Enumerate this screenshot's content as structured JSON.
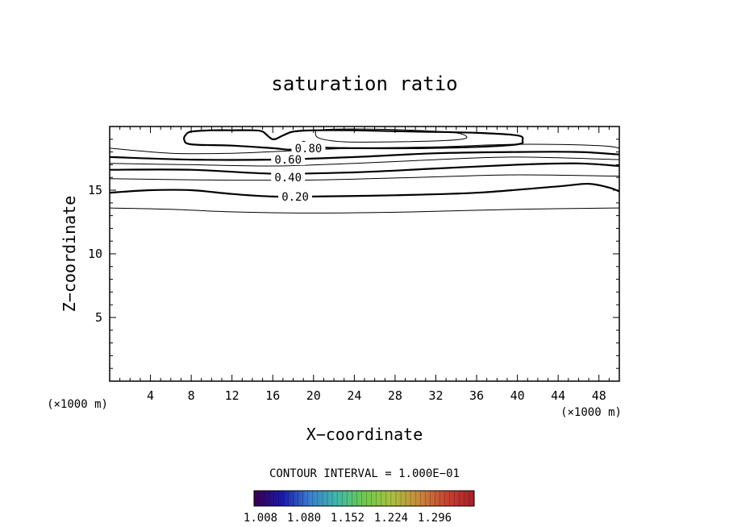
{
  "chart_data": {
    "type": "contour",
    "title": "saturation ratio",
    "xlabel": "X−coordinate",
    "ylabel": "Z−coordinate",
    "x_unit": "(×1000 m)",
    "y_unit": "(×1000 m)",
    "xlim": [
      0,
      50
    ],
    "ylim": [
      0,
      20
    ],
    "x_ticks": [
      4,
      8,
      12,
      16,
      20,
      24,
      28,
      32,
      36,
      40,
      44,
      48
    ],
    "y_ticks": [
      5,
      10,
      15
    ],
    "contour_interval_text": "CONTOUR INTERVAL = 1.000E−01",
    "contours": [
      {
        "level": 0.1,
        "labeled": false,
        "points": [
          [
            0,
            13.6
          ],
          [
            6,
            13.5
          ],
          [
            12,
            13.3
          ],
          [
            20,
            13.2
          ],
          [
            30,
            13.3
          ],
          [
            40,
            13.5
          ],
          [
            50,
            13.6
          ]
        ]
      },
      {
        "level": 0.2,
        "label": "0.20",
        "labeled": true,
        "label_at": [
          18.2,
          14.5
        ],
        "points": [
          [
            0,
            14.8
          ],
          [
            4,
            15.0
          ],
          [
            8,
            15.0
          ],
          [
            12,
            14.7
          ],
          [
            16,
            14.5
          ],
          [
            20,
            14.5
          ],
          [
            28,
            14.6
          ],
          [
            36,
            14.8
          ],
          [
            44,
            15.3
          ],
          [
            47,
            15.5
          ],
          [
            49,
            15.2
          ],
          [
            50,
            14.9
          ]
        ]
      },
      {
        "level": 0.3,
        "labeled": false,
        "points": [
          [
            0,
            15.9
          ],
          [
            10,
            15.8
          ],
          [
            20,
            15.8
          ],
          [
            30,
            16.0
          ],
          [
            40,
            16.2
          ],
          [
            50,
            16.1
          ]
        ]
      },
      {
        "level": 0.4,
        "label": "0.40",
        "labeled": true,
        "label_at": [
          17.5,
          16.0
        ],
        "points": [
          [
            0,
            16.6
          ],
          [
            8,
            16.6
          ],
          [
            16,
            16.3
          ],
          [
            24,
            16.4
          ],
          [
            32,
            16.7
          ],
          [
            40,
            17.0
          ],
          [
            46,
            17.1
          ],
          [
            50,
            16.9
          ]
        ]
      },
      {
        "level": 0.5,
        "labeled": false,
        "points": [
          [
            0,
            17.1
          ],
          [
            8,
            17.0
          ],
          [
            16,
            16.9
          ],
          [
            24,
            17.1
          ],
          [
            32,
            17.4
          ],
          [
            40,
            17.6
          ],
          [
            50,
            17.4
          ]
        ]
      },
      {
        "level": 0.6,
        "label": "0.60",
        "labeled": true,
        "label_at": [
          17.5,
          17.4
        ],
        "points": [
          [
            0,
            17.6
          ],
          [
            8,
            17.4
          ],
          [
            16,
            17.4
          ],
          [
            24,
            17.6
          ],
          [
            32,
            17.9
          ],
          [
            40,
            18.0
          ],
          [
            46,
            18.0
          ],
          [
            50,
            17.8
          ]
        ]
      },
      {
        "level": 0.7,
        "labeled": false,
        "points": [
          [
            0,
            18.3
          ],
          [
            6,
            17.9
          ],
          [
            12,
            17.9
          ],
          [
            18,
            18.1
          ],
          [
            24,
            18.3
          ],
          [
            32,
            18.4
          ],
          [
            40,
            18.6
          ],
          [
            48,
            18.5
          ],
          [
            50,
            18.3
          ]
        ]
      },
      {
        "level": 0.8,
        "label": "0.80",
        "labeled": true,
        "label_at": [
          19.5,
          18.3
        ],
        "points": [
          [
            7.5,
            19.4
          ],
          [
            8,
            19.6
          ],
          [
            10,
            19.7
          ],
          [
            12,
            19.7
          ],
          [
            14,
            19.7
          ],
          [
            15,
            19.6
          ],
          [
            16,
            19.0
          ],
          [
            17,
            19.3
          ],
          [
            18,
            19.6
          ],
          [
            20,
            19.7
          ],
          [
            24,
            19.7
          ],
          [
            30,
            19.6
          ],
          [
            36,
            19.5
          ],
          [
            40,
            19.3
          ],
          [
            40.5,
            18.9
          ],
          [
            40,
            18.6
          ],
          [
            36,
            18.4
          ],
          [
            30,
            18.3
          ],
          [
            24,
            18.3
          ],
          [
            20,
            18.4
          ],
          [
            19,
            18.8
          ],
          [
            18,
            18.2
          ],
          [
            16,
            18.3
          ],
          [
            12,
            18.5
          ],
          [
            8,
            18.6
          ],
          [
            7.3,
            19.0
          ],
          [
            7.5,
            19.4
          ]
        ]
      },
      {
        "level": 0.9,
        "labeled": false,
        "points": [
          [
            20.2,
            19.7
          ],
          [
            22,
            19.8
          ],
          [
            26,
            19.8
          ],
          [
            30,
            19.7
          ],
          [
            34,
            19.5
          ],
          [
            35,
            19.1
          ],
          [
            33,
            18.9
          ],
          [
            28,
            18.8
          ],
          [
            23,
            18.8
          ],
          [
            20.5,
            19.1
          ],
          [
            20.2,
            19.7
          ]
        ]
      }
    ],
    "colorbar": {
      "colors": [
        "#3a0055",
        "#1a1aa8",
        "#3a7fd0",
        "#3fb8a8",
        "#6ec94a",
        "#a8c040",
        "#c98a3a",
        "#c84430",
        "#a8202a"
      ],
      "tick_labels": [
        "1.008",
        "1.080",
        "1.152",
        "1.224",
        "1.296"
      ]
    }
  }
}
